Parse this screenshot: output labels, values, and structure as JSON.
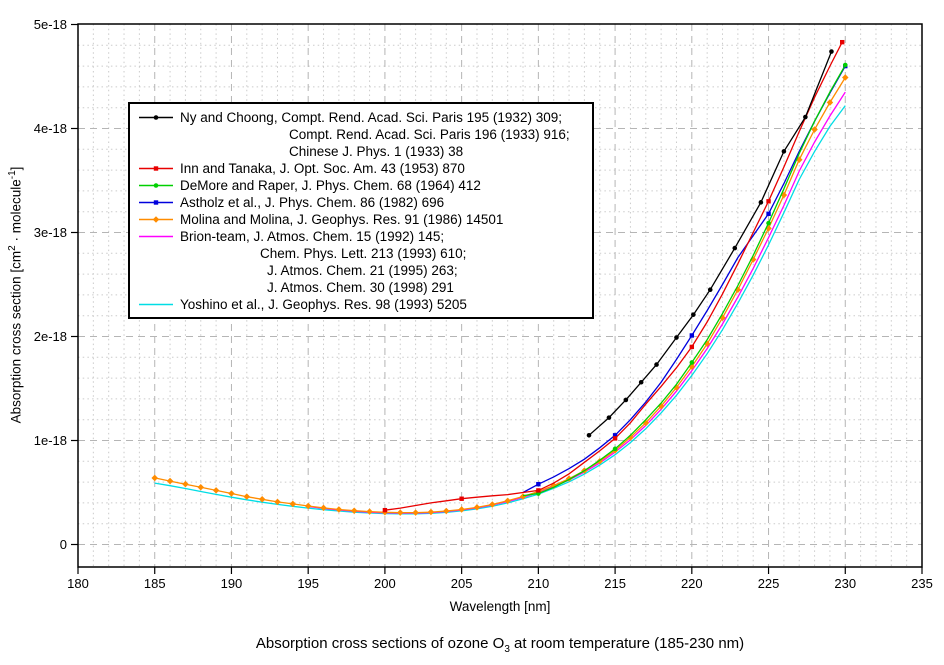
{
  "caption": {
    "prefix": "Absorption cross sections of ozone O",
    "sub": "3",
    "suffix": " at room temperature (185-230 nm)"
  },
  "axes": {
    "x": {
      "label": "Wavelength [nm]",
      "min": 180,
      "max": 235,
      "ticks": [
        180,
        185,
        190,
        195,
        200,
        205,
        210,
        215,
        220,
        225,
        230,
        235
      ],
      "minor_step": 1
    },
    "y": {
      "label_parts": {
        "prefix": "Absorption cross section [cm",
        "sup1": "2",
        "mid": " · molecule",
        "sup2": "-1",
        "suffix": "]"
      },
      "min": 0,
      "max": 5,
      "ticks": [
        {
          "v": 0,
          "label": "0"
        },
        {
          "v": 1,
          "label": "1e-18"
        },
        {
          "v": 2,
          "label": "2e-18"
        },
        {
          "v": 3,
          "label": "3e-18"
        },
        {
          "v": 4,
          "label": "4e-18"
        },
        {
          "v": 5,
          "label": "5e-18"
        }
      ],
      "minor_step": 0.2
    }
  },
  "colors": {
    "grid_major": "#b5b5b5",
    "grid_minor": "#cbcbcb",
    "frame": "#000000"
  },
  "legend": {
    "entries": [
      {
        "color": "#000000",
        "marker": "circle",
        "lines": [
          "Ny and Choong, Compt. Rend. Acad. Sci. Paris 195 (1932) 309;",
          "Compt. Rend. Acad. Sci. Paris 196 (1933) 916;",
          "Chinese J. Phys. 1 (1933) 38"
        ],
        "indents": [
          0,
          109,
          109
        ]
      },
      {
        "color": "#e80000",
        "marker": "square",
        "lines": [
          "Inn and Tanaka, J. Opt. Soc. Am. 43 (1953) 870"
        ],
        "indents": [
          0
        ]
      },
      {
        "color": "#00d000",
        "marker": "circle",
        "lines": [
          "DeMore and Raper, J. Phys. Chem. 68 (1964) 412"
        ],
        "indents": [
          0
        ]
      },
      {
        "color": "#0000dd",
        "marker": "square",
        "lines": [
          "Astholz et al., J. Phys. Chem. 86 (1982) 696"
        ],
        "indents": [
          0
        ]
      },
      {
        "color": "#ff8c00",
        "marker": "diamond",
        "lines": [
          "Molina and Molina, J. Geophys. Res. 91 (1986) 14501"
        ],
        "indents": [
          0
        ]
      },
      {
        "color": "#ff00ff",
        "marker": "none",
        "lines": [
          "Brion-team, J. Atmos. Chem. 15 (1992) 145;",
          "Chem. Phys. Lett. 213 (1993) 610;",
          "J. Atmos. Chem. 21 (1995) 263;",
          "J. Atmos. Chem. 30 (1998) 291"
        ],
        "indents": [
          0,
          80,
          87,
          87
        ]
      },
      {
        "color": "#00dde5",
        "marker": "none",
        "lines": [
          "Yoshino et al., J. Geophys. Res. 98 (1993) 5205"
        ],
        "indents": [
          0
        ]
      }
    ]
  },
  "chart_data": {
    "type": "line",
    "title": "Absorption cross sections of ozone O3 at room temperature (185-230 nm)",
    "xlabel": "Wavelength [nm]",
    "ylabel": "Absorption cross section [cm2 · molecule-1]",
    "xlim": [
      180,
      235
    ],
    "ylim_e18": [
      0,
      5
    ],
    "value_unit": "1e-18 cm2/molecule",
    "grid": true,
    "legend_position": "upper-left-inside",
    "series": [
      {
        "name": "Ny and Choong",
        "color": "#000000",
        "marker": "circle",
        "marker_at": "all",
        "points": [
          [
            213.3,
            1.05
          ],
          [
            214.6,
            1.22
          ],
          [
            215.7,
            1.39
          ],
          [
            216.7,
            1.56
          ],
          [
            217.7,
            1.73
          ],
          [
            219.0,
            1.99
          ],
          [
            220.1,
            2.21
          ],
          [
            221.2,
            2.45
          ],
          [
            222.8,
            2.85
          ],
          [
            224.5,
            3.29
          ],
          [
            226.0,
            3.78
          ],
          [
            227.4,
            4.11
          ],
          [
            229.1,
            4.74
          ]
        ]
      },
      {
        "name": "Inn and Tanaka",
        "color": "#e80000",
        "marker": "square",
        "marker_at": [
          200,
          205,
          210,
          215,
          220,
          225,
          229.8
        ],
        "points": [
          [
            200,
            0.33
          ],
          [
            201,
            0.35
          ],
          [
            202,
            0.375
          ],
          [
            203,
            0.4
          ],
          [
            204,
            0.42
          ],
          [
            205,
            0.44
          ],
          [
            206,
            0.455
          ],
          [
            207,
            0.468
          ],
          [
            208,
            0.48
          ],
          [
            209,
            0.5
          ],
          [
            210,
            0.52
          ],
          [
            211,
            0.59
          ],
          [
            212,
            0.68
          ],
          [
            213,
            0.79
          ],
          [
            214,
            0.9
          ],
          [
            215,
            1.02
          ],
          [
            216,
            1.17
          ],
          [
            217,
            1.35
          ],
          [
            218,
            1.52
          ],
          [
            219,
            1.7
          ],
          [
            220,
            1.9
          ],
          [
            221,
            2.14
          ],
          [
            222,
            2.41
          ],
          [
            223,
            2.7
          ],
          [
            224,
            3.0
          ],
          [
            225,
            3.3
          ],
          [
            226,
            3.63
          ],
          [
            227,
            3.97
          ],
          [
            228,
            4.3
          ],
          [
            229,
            4.6
          ],
          [
            229.8,
            4.83
          ]
        ]
      },
      {
        "name": "DeMore and Raper",
        "color": "#00d000",
        "marker": "circle",
        "marker_at": [
          210,
          215,
          220,
          225,
          230
        ],
        "points": [
          [
            209,
            0.47
          ],
          [
            210,
            0.49
          ],
          [
            211,
            0.55
          ],
          [
            212,
            0.625
          ],
          [
            213,
            0.71
          ],
          [
            214,
            0.81
          ],
          [
            215,
            0.92
          ],
          [
            216,
            1.05
          ],
          [
            217,
            1.2
          ],
          [
            218,
            1.36
          ],
          [
            219,
            1.54
          ],
          [
            220,
            1.75
          ],
          [
            221,
            1.97
          ],
          [
            222,
            2.22
          ],
          [
            223,
            2.49
          ],
          [
            224,
            2.78
          ],
          [
            225,
            3.09
          ],
          [
            226,
            3.42
          ],
          [
            227,
            3.76
          ],
          [
            228,
            4.07
          ],
          [
            229,
            4.35
          ],
          [
            230,
            4.61
          ]
        ]
      },
      {
        "name": "Astholz et al.",
        "color": "#0000dd",
        "marker": "square",
        "marker_at": [
          210,
          215,
          220,
          225,
          230
        ],
        "points": [
          [
            209,
            0.5
          ],
          [
            210,
            0.58
          ],
          [
            211,
            0.65
          ],
          [
            212,
            0.73
          ],
          [
            213,
            0.82
          ],
          [
            214,
            0.93
          ],
          [
            215,
            1.05
          ],
          [
            216,
            1.2
          ],
          [
            217,
            1.37
          ],
          [
            218,
            1.56
          ],
          [
            219,
            1.78
          ],
          [
            220,
            2.01
          ],
          [
            221,
            2.25
          ],
          [
            222,
            2.5
          ],
          [
            223,
            2.76
          ],
          [
            224,
            2.97
          ],
          [
            225,
            3.18
          ],
          [
            226,
            3.47
          ],
          [
            227,
            3.78
          ],
          [
            228,
            4.07
          ],
          [
            229,
            4.34
          ],
          [
            230,
            4.6
          ]
        ]
      },
      {
        "name": "Molina and Molina",
        "color": "#ff8c00",
        "marker": "diamond",
        "marker_at": "all",
        "points": [
          [
            185,
            0.64
          ],
          [
            186,
            0.61
          ],
          [
            187,
            0.58
          ],
          [
            188,
            0.55
          ],
          [
            189,
            0.52
          ],
          [
            190,
            0.49
          ],
          [
            191,
            0.46
          ],
          [
            192,
            0.435
          ],
          [
            193,
            0.41
          ],
          [
            194,
            0.39
          ],
          [
            195,
            0.37
          ],
          [
            196,
            0.352
          ],
          [
            197,
            0.337
          ],
          [
            198,
            0.325
          ],
          [
            199,
            0.316
          ],
          [
            200,
            0.31
          ],
          [
            201,
            0.307
          ],
          [
            202,
            0.307
          ],
          [
            203,
            0.312
          ],
          [
            204,
            0.322
          ],
          [
            205,
            0.337
          ],
          [
            206,
            0.357
          ],
          [
            207,
            0.385
          ],
          [
            208,
            0.42
          ],
          [
            209,
            0.462
          ],
          [
            210,
            0.51
          ],
          [
            211,
            0.567
          ],
          [
            212,
            0.633
          ],
          [
            213,
            0.71
          ],
          [
            214,
            0.8
          ],
          [
            215,
            0.905
          ],
          [
            216,
            1.03
          ],
          [
            217,
            1.17
          ],
          [
            218,
            1.33
          ],
          [
            219,
            1.51
          ],
          [
            220,
            1.71
          ],
          [
            221,
            1.93
          ],
          [
            222,
            2.18
          ],
          [
            223,
            2.45
          ],
          [
            224,
            2.74
          ],
          [
            225,
            3.04
          ],
          [
            226,
            3.36
          ],
          [
            227,
            3.7
          ],
          [
            228,
            3.99
          ],
          [
            229,
            4.25
          ],
          [
            230,
            4.49
          ]
        ]
      },
      {
        "name": "Brion-team",
        "color": "#ff00ff",
        "marker": "none",
        "marker_at": [],
        "points": [
          [
            195,
            0.365
          ],
          [
            196,
            0.347
          ],
          [
            197,
            0.332
          ],
          [
            198,
            0.32
          ],
          [
            199,
            0.311
          ],
          [
            200,
            0.305
          ],
          [
            201,
            0.302
          ],
          [
            202,
            0.302
          ],
          [
            203,
            0.307
          ],
          [
            204,
            0.317
          ],
          [
            205,
            0.332
          ],
          [
            206,
            0.352
          ],
          [
            207,
            0.38
          ],
          [
            208,
            0.413
          ],
          [
            209,
            0.453
          ],
          [
            210,
            0.5
          ],
          [
            211,
            0.556
          ],
          [
            212,
            0.621
          ],
          [
            213,
            0.697
          ],
          [
            214,
            0.785
          ],
          [
            215,
            0.888
          ],
          [
            216,
            1.008
          ],
          [
            217,
            1.145
          ],
          [
            218,
            1.3
          ],
          [
            219,
            1.475
          ],
          [
            220,
            1.67
          ],
          [
            221,
            1.885
          ],
          [
            222,
            2.12
          ],
          [
            223,
            2.38
          ],
          [
            224,
            2.655
          ],
          [
            225,
            2.95
          ],
          [
            226,
            3.26
          ],
          [
            227,
            3.59
          ],
          [
            228,
            3.87
          ],
          [
            229,
            4.12
          ],
          [
            230,
            4.35
          ]
        ]
      },
      {
        "name": "Yoshino et al.",
        "color": "#00dde5",
        "marker": "none",
        "marker_at": [],
        "points": [
          [
            185,
            0.59
          ],
          [
            186,
            0.565
          ],
          [
            187,
            0.538
          ],
          [
            188,
            0.51
          ],
          [
            189,
            0.482
          ],
          [
            190,
            0.455
          ],
          [
            191,
            0.43
          ],
          [
            192,
            0.407
          ],
          [
            193,
            0.386
          ],
          [
            194,
            0.367
          ],
          [
            195,
            0.35
          ],
          [
            196,
            0.335
          ],
          [
            197,
            0.322
          ],
          [
            198,
            0.311
          ],
          [
            199,
            0.303
          ],
          [
            200,
            0.297
          ],
          [
            201,
            0.294
          ],
          [
            202,
            0.294
          ],
          [
            203,
            0.299
          ],
          [
            204,
            0.309
          ],
          [
            205,
            0.323
          ],
          [
            206,
            0.342
          ],
          [
            207,
            0.368
          ],
          [
            208,
            0.4
          ],
          [
            209,
            0.44
          ],
          [
            210,
            0.485
          ],
          [
            211,
            0.54
          ],
          [
            212,
            0.603
          ],
          [
            213,
            0.677
          ],
          [
            214,
            0.763
          ],
          [
            215,
            0.863
          ],
          [
            216,
            0.98
          ],
          [
            217,
            1.113
          ],
          [
            218,
            1.265
          ],
          [
            219,
            1.435
          ],
          [
            220,
            1.625
          ],
          [
            221,
            1.835
          ],
          [
            222,
            2.065
          ],
          [
            223,
            2.32
          ],
          [
            224,
            2.59
          ],
          [
            225,
            2.88
          ],
          [
            226,
            3.19
          ],
          [
            227,
            3.51
          ],
          [
            228,
            3.78
          ],
          [
            229,
            4.02
          ],
          [
            230,
            4.22
          ]
        ]
      }
    ]
  }
}
